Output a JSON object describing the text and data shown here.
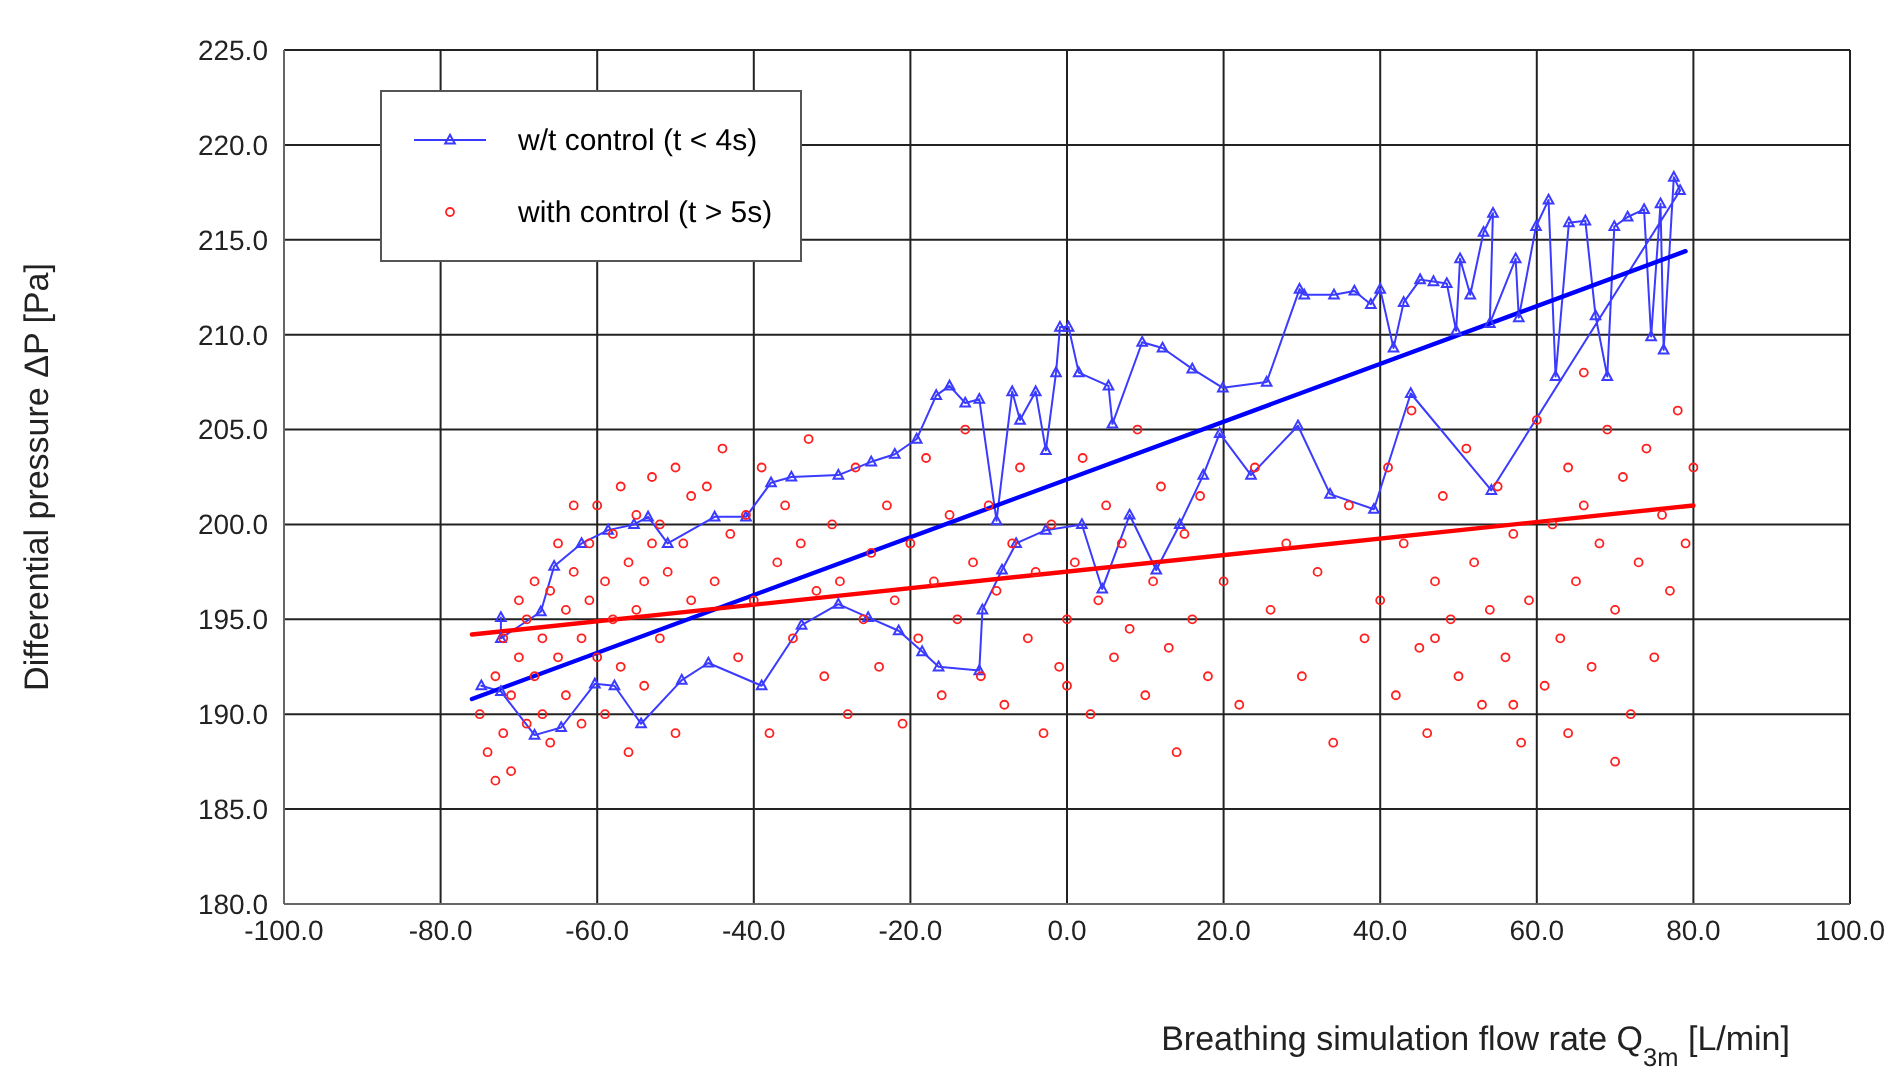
{
  "chart_data": {
    "type": "scatter",
    "xlabel": "Breathing simulation flow rate Q$_{3m}$ [L/min]",
    "ylabel": "Differential pressure ΔP [Pa]",
    "xlim": [
      -100,
      100
    ],
    "xticks": [
      {
        "value": -100,
        "label": "-100.0"
      },
      {
        "value": -80,
        "label": "-80.0"
      },
      {
        "value": -60,
        "label": "-60.0"
      },
      {
        "value": -40,
        "label": "-40.0"
      },
      {
        "value": -20,
        "label": "-20.0"
      },
      {
        "value": 0,
        "label": "0.0"
      },
      {
        "value": 20,
        "label": "20.0"
      },
      {
        "value": 40,
        "label": "40.0"
      },
      {
        "value": 60,
        "label": "60.0"
      },
      {
        "value": 80,
        "label": "80.0"
      },
      {
        "value": 100,
        "label": "100.0"
      }
    ],
    "ylim": [
      180,
      225
    ],
    "yticks": [
      {
        "value": 180,
        "label": "180.0"
      },
      {
        "value": 185,
        "label": "185.0"
      },
      {
        "value": 190,
        "label": "190.0"
      },
      {
        "value": 195,
        "label": "195.0"
      },
      {
        "value": 200,
        "label": "200.0"
      },
      {
        "value": 205,
        "label": "205.0"
      },
      {
        "value": 210,
        "label": "210.0"
      },
      {
        "value": 215,
        "label": "215.0"
      },
      {
        "value": 220,
        "label": "220.0"
      },
      {
        "value": 225,
        "label": "225.0"
      }
    ],
    "grid": true,
    "legend": "top left",
    "series": [
      {
        "name": "w/t control (t < 4s)",
        "type": "line",
        "marker": "triangle",
        "color": "#3b3bff",
        "x": [
          -72.3,
          -72.3,
          -67.2,
          -65.5,
          -62,
          -58.6,
          -55.3,
          -53.5,
          -51,
          -45,
          -41,
          -37.8,
          -35.2,
          -29.2,
          -25,
          -22,
          -19.2,
          -16.7,
          -15,
          -13,
          -11.2,
          -9,
          -7,
          -6,
          -4,
          -2.7,
          -1.4,
          -0.9,
          0.2,
          1.5,
          5.3,
          5.8,
          9.6,
          12.2,
          16,
          19.9,
          25.5,
          29.7,
          30.3,
          34.1,
          36.7,
          38.8,
          40,
          41.7,
          43,
          45.1,
          46.8,
          48.5,
          49.7,
          50.2,
          51.5,
          53.2,
          54.4,
          54,
          57.3,
          57.7,
          59.9,
          61.5,
          62.4,
          64.1,
          66.2,
          67.5,
          69,
          69.9,
          71.6,
          73.7,
          74.6,
          75.8,
          76.2,
          77.5,
          78.3,
          54.2,
          43.9,
          39.2,
          33.6,
          29.5,
          23.5,
          19.5,
          17.4,
          14.4,
          11.4,
          8,
          4.5,
          1.9,
          -2.7,
          -6.5,
          -8.3,
          -10.8,
          -11.2,
          -16.4,
          -18.5,
          -21.5,
          -25.4,
          -29.2,
          -33.9,
          -39,
          -45.8,
          -49.2,
          -54.4,
          -57.8,
          -60.3,
          -64.6,
          -68,
          -72.3,
          -74.8
        ],
        "values": [
          195.1,
          194,
          195.4,
          197.8,
          199,
          199.7,
          200,
          200.4,
          199,
          200.4,
          200.4,
          202.2,
          202.5,
          202.6,
          203.3,
          203.7,
          204.5,
          206.8,
          207.3,
          206.4,
          206.6,
          200.2,
          207,
          205.5,
          207,
          203.9,
          208,
          210.4,
          210.4,
          208,
          207.3,
          205.3,
          209.6,
          209.3,
          208.2,
          207.2,
          207.5,
          212.4,
          212.1,
          212.1,
          212.3,
          211.6,
          212.4,
          209.3,
          211.7,
          212.9,
          212.8,
          212.7,
          210.2,
          214,
          212.1,
          215.4,
          216.4,
          210.6,
          214,
          210.9,
          215.7,
          217.1,
          207.8,
          215.9,
          216,
          211,
          207.8,
          215.7,
          216.2,
          216.6,
          209.9,
          216.9,
          209.2,
          218.3,
          217.6,
          201.8,
          206.9,
          200.8,
          201.6,
          205.2,
          202.6,
          204.8,
          202.6,
          200,
          197.6,
          200.5,
          196.6,
          200,
          199.7,
          199,
          197.6,
          195.5,
          192.3,
          192.5,
          193.3,
          194.4,
          195.1,
          195.8,
          194.7,
          191.5,
          192.7,
          191.8,
          189.5,
          191.5,
          191.6,
          189.3,
          188.9,
          191.2,
          191.5
        ]
      },
      {
        "name": "with control (t > 5s)",
        "marker": "circle",
        "color": "#ff2020",
        "x": [
          -75,
          -74,
          -73,
          -73,
          -72,
          -72,
          -71,
          -71,
          -70,
          -70,
          -69,
          -69,
          -68,
          -68,
          -67,
          -67,
          -66,
          -66,
          -65,
          -65,
          -64,
          -64,
          -63,
          -63,
          -62,
          -62,
          -61,
          -61,
          -60,
          -60,
          -59,
          -59,
          -58,
          -58,
          -57,
          -57,
          -56,
          -56,
          -55,
          -55,
          -54,
          -54,
          -53,
          -53,
          -52,
          -52,
          -51,
          -50,
          -50,
          -49,
          -48,
          -48,
          -46,
          -45,
          -44,
          -43,
          -42,
          -41,
          -40,
          -39,
          -38,
          -37,
          -36,
          -35,
          -34,
          -33,
          -32,
          -31,
          -30,
          -29,
          -28,
          -27,
          -26,
          -25,
          -24,
          -23,
          -22,
          -21,
          -20,
          -19,
          -18,
          -17,
          -16,
          -15,
          -14,
          -13,
          -12,
          -11,
          -10,
          -9,
          -8,
          -7,
          -6,
          -5,
          -4,
          -3,
          -2,
          -1,
          0,
          0,
          1,
          2,
          3,
          4,
          5,
          6,
          7,
          8,
          9,
          10,
          11,
          12,
          13,
          14,
          15,
          16,
          17,
          18,
          20,
          22,
          24,
          26,
          28,
          30,
          32,
          34,
          36,
          38,
          40,
          41,
          42,
          43,
          44,
          45,
          46,
          47,
          48,
          49,
          50,
          51,
          52,
          53,
          54,
          55,
          56,
          57,
          58,
          59,
          60,
          61,
          62,
          63,
          64,
          65,
          66,
          66,
          67,
          68,
          69,
          70,
          71,
          72,
          73,
          74,
          75,
          76,
          77,
          78,
          79,
          80,
          64,
          70,
          57,
          47
        ],
        "values": [
          190,
          188,
          186.5,
          192,
          189,
          194,
          187,
          191,
          193,
          196,
          189.5,
          195,
          192,
          197,
          190,
          194,
          196.5,
          188.5,
          193,
          199,
          195.5,
          191,
          197.5,
          201,
          194,
          189.5,
          199,
          196,
          193,
          201,
          197,
          190,
          199.5,
          195,
          202,
          192.5,
          198,
          188,
          200.5,
          195.5,
          197,
          191.5,
          202.5,
          199,
          194,
          200,
          197.5,
          203,
          189,
          199,
          201.5,
          196,
          202,
          197,
          204,
          199.5,
          193,
          200.5,
          196,
          203,
          189,
          198,
          201,
          194,
          199,
          204.5,
          196.5,
          192,
          200,
          197,
          190,
          203,
          195,
          198.5,
          192.5,
          201,
          196,
          189.5,
          199,
          194,
          203.5,
          197,
          191,
          200.5,
          195,
          205,
          198,
          192,
          201,
          196.5,
          190.5,
          199,
          203,
          194,
          197.5,
          189,
          200,
          192.5,
          195,
          191.5,
          198,
          203.5,
          190,
          196,
          201,
          193,
          199,
          194.5,
          205,
          191,
          197,
          202,
          193.5,
          188,
          199.5,
          195,
          201.5,
          192,
          197,
          190.5,
          203,
          195.5,
          199,
          192,
          197.5,
          188.5,
          201,
          194,
          196,
          203,
          191,
          199,
          206,
          193.5,
          189,
          197,
          201.5,
          195,
          192,
          204,
          198,
          190.5,
          195.5,
          202,
          193,
          199.5,
          188.5,
          196,
          205.5,
          191.5,
          200,
          194,
          203,
          197,
          208,
          201,
          192.5,
          199,
          205,
          195.5,
          202.5,
          190,
          198,
          204,
          193,
          200.5,
          196.5,
          206,
          199,
          203,
          189,
          187.5,
          190.5,
          194
        ]
      },
      {
        "type": "line",
        "marker": "none",
        "color": "#0000ff",
        "x": [
          -76,
          79
        ],
        "values": [
          190.8,
          214.4
        ]
      },
      {
        "type": "line",
        "marker": "none",
        "color": "#ff0000",
        "x": [
          -76,
          80
        ],
        "values": [
          194.2,
          201.0
        ]
      }
    ]
  }
}
